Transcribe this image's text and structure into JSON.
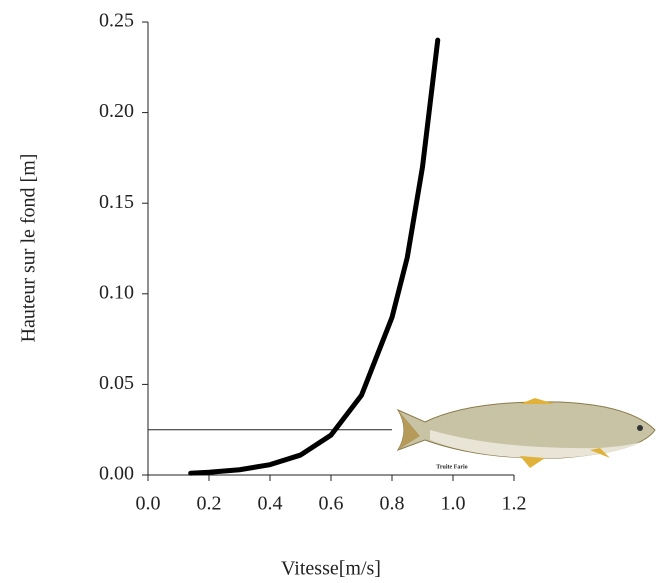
{
  "chart_data": {
    "type": "line",
    "x_label": "Vitesse[m/s]",
    "y_label": "Hauteur sur le fond [m]",
    "x": [
      0.14,
      0.2,
      0.3,
      0.4,
      0.5,
      0.6,
      0.7,
      0.8,
      0.85,
      0.9,
      0.95
    ],
    "values": [
      0.001,
      0.0015,
      0.0029,
      0.0057,
      0.011,
      0.022,
      0.044,
      0.087,
      0.12,
      0.17,
      0.24
    ],
    "color": "#000000",
    "hline": {
      "y": 0.025,
      "xmin": 0.0,
      "xmax": 0.8
    },
    "annotation": "Truite Fario",
    "xlim": [
      0.0,
      1.2
    ],
    "xticks": [
      {
        "value": 0,
        "label": "0.0"
      },
      0.2,
      0.4,
      0.6,
      0.8,
      {
        "value": 1,
        "label": "1.0"
      },
      1.2
    ],
    "ylim": [
      0.0,
      0.25
    ],
    "yticks": [
      {
        "value": 0,
        "label": "0.00"
      },
      0.05,
      {
        "value": 0.1,
        "label": "0.10"
      },
      0.15,
      {
        "value": 0.2,
        "label": "0.20"
      },
      0.25
    ]
  }
}
